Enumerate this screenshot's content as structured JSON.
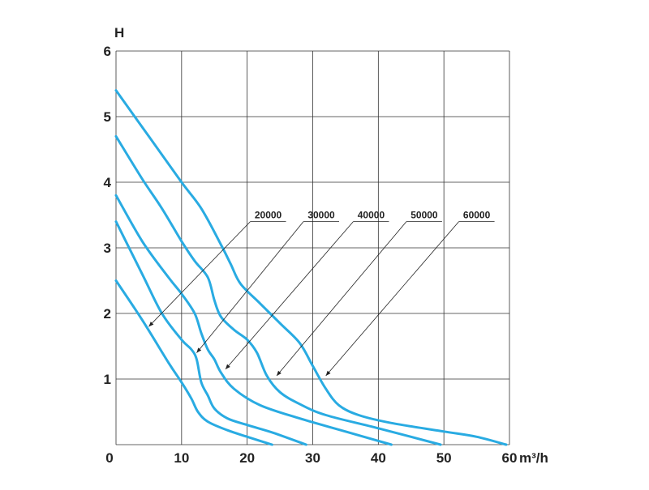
{
  "chart_data": {
    "type": "line",
    "title": "",
    "xlabel": "m³/h",
    "xlabel_prefix": "60",
    "ylabel": "H",
    "xlim": [
      0,
      60
    ],
    "ylim": [
      0,
      6
    ],
    "x_ticks": [
      "0",
      "10",
      "20",
      "30",
      "40",
      "50"
    ],
    "y_ticks": [
      "1",
      "2",
      "3",
      "4",
      "5",
      "6"
    ],
    "grid": true,
    "line_color": "#29abe2",
    "series": [
      {
        "name": "20000",
        "points": [
          [
            0,
            2.5
          ],
          [
            4,
            1.9
          ],
          [
            8,
            1.25
          ],
          [
            10,
            0.95
          ],
          [
            11.5,
            0.7
          ],
          [
            12.5,
            0.5
          ],
          [
            14,
            0.35
          ],
          [
            17,
            0.22
          ],
          [
            20,
            0.12
          ],
          [
            23.8,
            0.0
          ]
        ],
        "label_x": 23.2,
        "label_y": 3.4,
        "arrow_x": 5,
        "arrow_y": 1.8
      },
      {
        "name": "30000",
        "points": [
          [
            0,
            3.4
          ],
          [
            4,
            2.6
          ],
          [
            7,
            2.0
          ],
          [
            10,
            1.6
          ],
          [
            11.5,
            1.45
          ],
          [
            12.3,
            1.3
          ],
          [
            13,
            0.95
          ],
          [
            14,
            0.75
          ],
          [
            15,
            0.55
          ],
          [
            17,
            0.4
          ],
          [
            20,
            0.3
          ],
          [
            24,
            0.18
          ],
          [
            29,
            0.0
          ]
        ],
        "label_x": 31.3,
        "label_y": 3.4,
        "arrow_x": 12.3,
        "arrow_y": 1.4
      },
      {
        "name": "40000",
        "points": [
          [
            0,
            3.8
          ],
          [
            4,
            3.1
          ],
          [
            8,
            2.55
          ],
          [
            10,
            2.3
          ],
          [
            12,
            2.0
          ],
          [
            13,
            1.7
          ],
          [
            14,
            1.45
          ],
          [
            15,
            1.3
          ],
          [
            16,
            1.1
          ],
          [
            18,
            0.85
          ],
          [
            22,
            0.6
          ],
          [
            28,
            0.4
          ],
          [
            35,
            0.2
          ],
          [
            42,
            0.0
          ]
        ],
        "label_x": 38.9,
        "label_y": 3.4,
        "arrow_x": 16.7,
        "arrow_y": 1.15
      },
      {
        "name": "50000",
        "points": [
          [
            0,
            4.7
          ],
          [
            4,
            4.05
          ],
          [
            7,
            3.6
          ],
          [
            10,
            3.1
          ],
          [
            12,
            2.8
          ],
          [
            14,
            2.55
          ],
          [
            15,
            2.2
          ],
          [
            16,
            1.95
          ],
          [
            18,
            1.75
          ],
          [
            20,
            1.6
          ],
          [
            21.5,
            1.4
          ],
          [
            23,
            1.05
          ],
          [
            25,
            0.8
          ],
          [
            28,
            0.62
          ],
          [
            32,
            0.45
          ],
          [
            40,
            0.25
          ],
          [
            49.5,
            0.0
          ]
        ],
        "label_x": 47.0,
        "label_y": 3.4,
        "arrow_x": 24.5,
        "arrow_y": 1.05
      },
      {
        "name": "60000",
        "points": [
          [
            0,
            5.4
          ],
          [
            5,
            4.7
          ],
          [
            10,
            4.0
          ],
          [
            13,
            3.6
          ],
          [
            16,
            3.05
          ],
          [
            17.5,
            2.75
          ],
          [
            19,
            2.45
          ],
          [
            22,
            2.15
          ],
          [
            25,
            1.85
          ],
          [
            28,
            1.55
          ],
          [
            30,
            1.2
          ],
          [
            32,
            0.85
          ],
          [
            34,
            0.6
          ],
          [
            37,
            0.45
          ],
          [
            42,
            0.33
          ],
          [
            50,
            0.2
          ],
          [
            55,
            0.12
          ],
          [
            59.5,
            0.0
          ]
        ],
        "label_x": 55.0,
        "label_y": 3.4,
        "arrow_x": 32.0,
        "arrow_y": 1.05
      }
    ]
  }
}
